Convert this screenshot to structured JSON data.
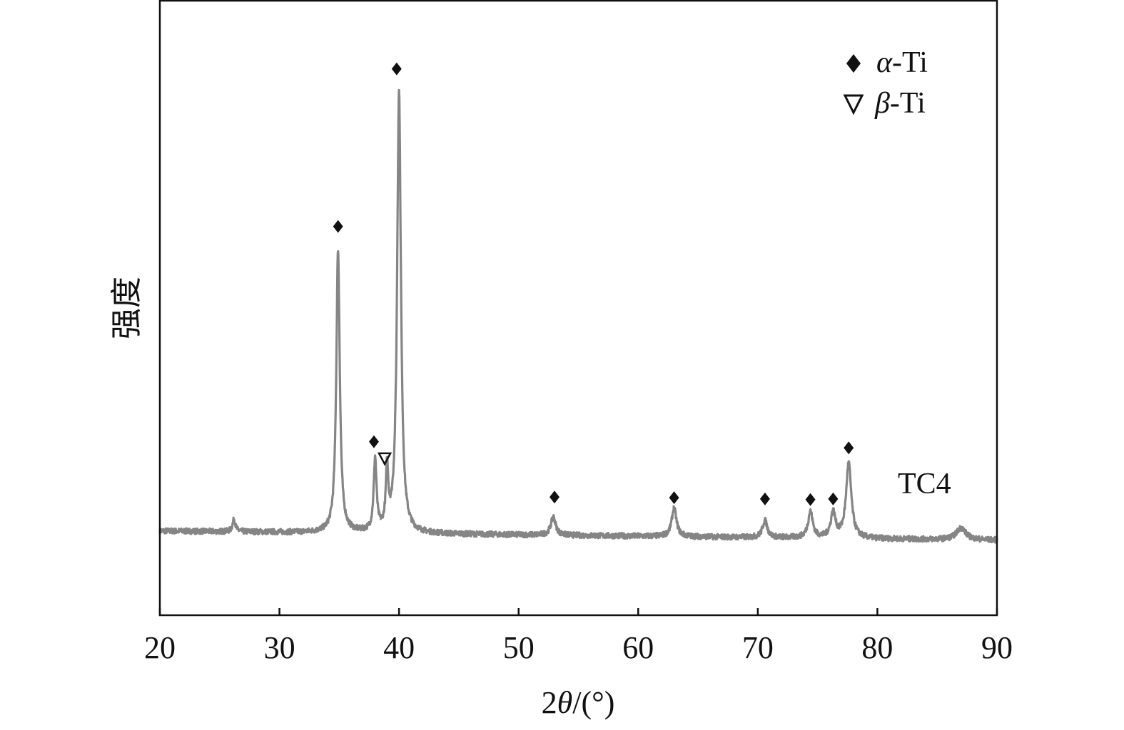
{
  "chart_data": {
    "type": "line",
    "xlabel": "2θ/(°)",
    "xlabel_parts": {
      "num": "2",
      "theta": "θ",
      "unit": "/(°)"
    },
    "ylabel": "强度",
    "xlim": [
      20,
      90
    ],
    "xticks": [
      20,
      30,
      40,
      50,
      60,
      70,
      80,
      90
    ],
    "ylim": [
      0,
      100
    ],
    "y_units": "relative intensity (no ticks shown)",
    "grid": false,
    "line_color": "#858585",
    "sample_label": "TC4",
    "baseline": {
      "start": 13.7,
      "end": 12.2
    },
    "peaks": [
      {
        "x": 26.2,
        "y": 15.6,
        "width": 0.18
      },
      {
        "x": 34.9,
        "y": 59.4,
        "width": 0.22
      },
      {
        "x": 38.0,
        "y": 25.0,
        "width": 0.18
      },
      {
        "x": 39.0,
        "y": 23.0,
        "width": 0.15
      },
      {
        "x": 40.0,
        "y": 85.0,
        "width": 0.24
      },
      {
        "x": 52.9,
        "y": 16.0,
        "width": 0.3
      },
      {
        "x": 63.0,
        "y": 17.4,
        "width": 0.3
      },
      {
        "x": 70.6,
        "y": 15.4,
        "width": 0.3
      },
      {
        "x": 74.4,
        "y": 16.8,
        "width": 0.3
      },
      {
        "x": 76.3,
        "y": 16.6,
        "width": 0.3
      },
      {
        "x": 77.6,
        "y": 24.7,
        "width": 0.33
      },
      {
        "x": 87.0,
        "y": 14.2,
        "width": 0.6
      }
    ],
    "markers": [
      {
        "phase": "α-Ti",
        "symbol": "diamond",
        "x": 34.9,
        "y": 63.2
      },
      {
        "phase": "α-Ti",
        "symbol": "diamond",
        "x": 37.9,
        "y": 28.2
      },
      {
        "phase": "β-Ti",
        "symbol": "triangle-down",
        "x": 38.8,
        "y": 25.5
      },
      {
        "phase": "α-Ti",
        "symbol": "diamond",
        "x": 39.8,
        "y": 88.8
      },
      {
        "phase": "α-Ti",
        "symbol": "diamond",
        "x": 53.0,
        "y": 19.2
      },
      {
        "phase": "α-Ti",
        "symbol": "diamond",
        "x": 63.0,
        "y": 19.1
      },
      {
        "phase": "α-Ti",
        "symbol": "diamond",
        "x": 70.6,
        "y": 18.9
      },
      {
        "phase": "α-Ti",
        "symbol": "diamond",
        "x": 74.4,
        "y": 18.8
      },
      {
        "phase": "α-Ti",
        "symbol": "diamond",
        "x": 76.3,
        "y": 18.9
      },
      {
        "phase": "α-Ti",
        "symbol": "diamond",
        "x": 77.6,
        "y": 27.2
      }
    ],
    "legend": {
      "position": "top-right",
      "entries": [
        {
          "symbol": "diamond",
          "greek": "α",
          "label": "-Ti"
        },
        {
          "symbol": "triangle-down",
          "greek": "β",
          "label": "-Ti"
        }
      ]
    }
  }
}
